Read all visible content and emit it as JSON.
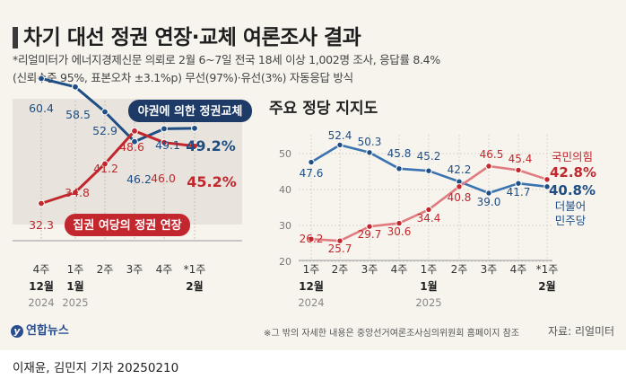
{
  "title": "차기 대선 정권 연장·교체 여론조사 결과",
  "notes": [
    "*리얼미터가 에너지경제신문 의뢰로 2월 6~7일 전국 18세 이상 1,002명 조사, 응답률 8.4%",
    "(신뢰수준 95%, 표본오차 ±3.1%p) 무선(97%)·유선(3%) 자동응답 방식"
  ],
  "footnote": "※그 밖의 자세한 내용은 중앙선거여론조사심의위원회 홈페이지 참조",
  "source": "자료: 리얼미터",
  "credit": "이재윤, 김민지 기자  20250210",
  "logo": "연합뉴스",
  "colors": {
    "blue": "#1f4e85",
    "red": "#c1272d",
    "lightblue": "#3a73b0",
    "pink": "#e07b7f"
  },
  "chart_data": [
    {
      "type": "line",
      "title": "",
      "x_top": [
        "4주",
        "1주",
        "2주",
        "3주",
        "4주",
        "*1주"
      ],
      "x_bottom": [
        "12월",
        "1월",
        "",
        "",
        "",
        "2월"
      ],
      "x_year": [
        "2024",
        "2025",
        "",
        "",
        "",
        ""
      ],
      "series": [
        {
          "name": "야권에 의한 정권교체",
          "values": [
            60.4,
            58.5,
            52.9,
            46.2,
            49.1,
            49.2
          ],
          "labels": [
            "60.4",
            "58.5",
            "52.9",
            "46.2",
            "49.1",
            "49.2%"
          ]
        },
        {
          "name": "집권 여당의 정권 연장",
          "values": [
            32.3,
            34.8,
            41.2,
            48.6,
            46.0,
            45.2
          ],
          "labels": [
            "32.3",
            "34.8",
            "41.2",
            "48.6",
            "46.0",
            "45.2%"
          ]
        }
      ]
    },
    {
      "type": "line",
      "title": "주요 정당 지지도",
      "y_ticks": [
        "50",
        "40",
        "30",
        "20"
      ],
      "ylim": [
        20,
        55
      ],
      "x_top": [
        "1주",
        "2주",
        "3주",
        "4주",
        "1주",
        "2주",
        "3주",
        "4주",
        "*1주"
      ],
      "x_bottom": [
        "12월",
        "",
        "",
        "",
        "1월",
        "",
        "",
        "",
        "2월"
      ],
      "x_year": [
        "2024",
        "",
        "",
        "",
        "2025",
        "",
        "",
        "",
        ""
      ],
      "series": [
        {
          "name": "더불어 민주당",
          "name_lines": [
            "더불어",
            "민주당"
          ],
          "values": [
            47.6,
            52.4,
            50.3,
            45.8,
            45.2,
            42.2,
            39.0,
            41.7,
            40.8
          ],
          "labels": [
            "47.6",
            "52.4",
            "50.3",
            "45.8",
            "45.2",
            "42.2",
            "39.0",
            "41.7",
            "40.8%"
          ]
        },
        {
          "name": "국민의힘",
          "name_lines": [
            "국민의힘"
          ],
          "values": [
            26.2,
            25.7,
            29.7,
            30.6,
            34.4,
            40.8,
            46.5,
            45.4,
            42.8
          ],
          "labels": [
            "26.2",
            "25.7",
            "29.7",
            "30.6",
            "34.4",
            "40.8",
            "46.5",
            "45.4",
            "42.8%"
          ]
        }
      ]
    }
  ]
}
